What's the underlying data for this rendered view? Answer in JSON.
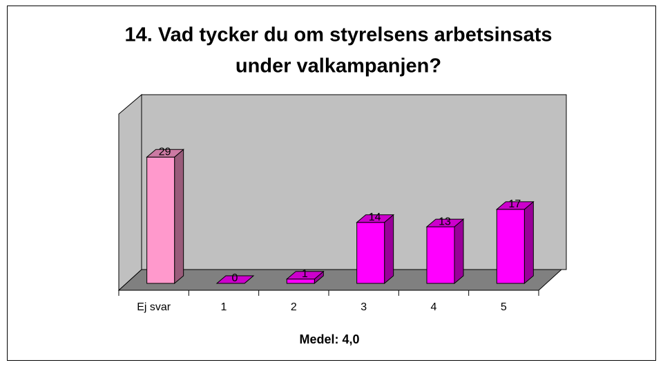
{
  "chart_data": {
    "type": "bar3d",
    "title": [
      "14. Vad tycker du om styrelsens arbetsinsats",
      "under valkampanjen?"
    ],
    "categories": [
      "Ej svar",
      "1",
      "2",
      "3",
      "4",
      "5"
    ],
    "values": [
      29,
      0,
      1,
      14,
      13,
      17
    ],
    "colors": [
      "#ff99cc",
      "#ff00ff",
      "#ff00ff",
      "#ff00ff",
      "#ff00ff",
      "#ff00ff"
    ],
    "ylim": [
      0,
      40
    ],
    "xlabel": "Medel: 4,0"
  }
}
